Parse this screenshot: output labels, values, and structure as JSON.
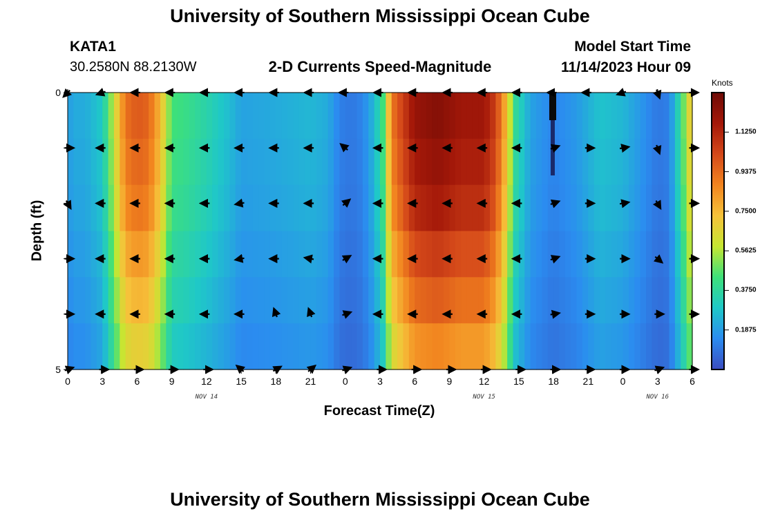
{
  "header": {
    "title": "University of Southern Mississippi Ocean Cube",
    "station_id": "KATA1",
    "station_coords": "30.2580N  88.2130W",
    "chart_title": "2-D Currents Speed-Magnitude",
    "model_start_label": "Model Start Time",
    "model_start_value": "11/14/2023 Hour 09"
  },
  "footer": {
    "title": "University of Southern Mississippi Ocean Cube"
  },
  "chart_data": {
    "type": "heatmap",
    "title": "2-D Currents Speed-Magnitude",
    "xlabel": "Forecast Time(Z)",
    "ylabel": "Depth (ft)",
    "x_hours": [
      0,
      3,
      6,
      9,
      12,
      15,
      18,
      21,
      24,
      27,
      30,
      33,
      36,
      39,
      42,
      45,
      48,
      51,
      54
    ],
    "x_tick_labels": [
      "0",
      "3",
      "6",
      "9",
      "12",
      "15",
      "18",
      "21",
      "0",
      "3",
      "6",
      "9",
      "12",
      "15",
      "18",
      "21",
      "0",
      "3",
      "6"
    ],
    "xlim": [
      0,
      54
    ],
    "day_labels": [
      {
        "text": "NOV 14",
        "hour": 12
      },
      {
        "text": "NOV 15",
        "hour": 36
      },
      {
        "text": "NOV 16",
        "hour": 51
      }
    ],
    "ylim": [
      0,
      5
    ],
    "y_tick_labels": [
      "0",
      "5"
    ],
    "depth_rows": [
      0,
      1,
      2,
      3,
      4,
      5
    ],
    "colorbar": {
      "unit": "Knots",
      "min": 0,
      "max": 1.3125,
      "ticks": [
        "0.1875",
        "0.3750",
        "0.5625",
        "0.7500",
        "0.9375",
        "1.1250"
      ],
      "colors": [
        "#3b4cc0",
        "#2b8cf0",
        "#1fc8c8",
        "#3ee07a",
        "#c6e632",
        "#f6c23a",
        "#f2841f",
        "#d4481a",
        "#a41809",
        "#6e0a05"
      ]
    },
    "speed_profile_knots": [
      [
        0,
        0.18
      ],
      [
        0.5,
        0.22
      ],
      [
        1.5,
        0.22
      ],
      [
        3,
        0.3
      ],
      [
        4,
        0.6
      ],
      [
        5,
        0.92
      ],
      [
        6,
        0.98
      ],
      [
        7,
        0.95
      ],
      [
        8,
        0.75
      ],
      [
        9,
        0.44
      ],
      [
        10,
        0.42
      ],
      [
        12,
        0.35
      ],
      [
        14,
        0.26
      ],
      [
        15,
        0.2
      ],
      [
        18,
        0.22
      ],
      [
        21,
        0.25
      ],
      [
        22.5,
        0.22
      ],
      [
        23.5,
        0.12
      ],
      [
        24.5,
        0.1
      ],
      [
        25.5,
        0.13
      ],
      [
        26.5,
        0.25
      ],
      [
        27.3,
        0.45
      ],
      [
        28,
        0.9
      ],
      [
        30,
        1.2
      ],
      [
        32,
        1.25
      ],
      [
        34,
        1.18
      ],
      [
        36,
        1.18
      ],
      [
        37,
        1.05
      ],
      [
        38,
        0.72
      ],
      [
        38.6,
        0.4
      ],
      [
        40,
        0.2
      ],
      [
        42,
        0.13
      ],
      [
        44,
        0.18
      ],
      [
        46,
        0.28
      ],
      [
        48,
        0.25
      ],
      [
        50,
        0.15
      ],
      [
        51,
        0.1
      ],
      [
        52,
        0.12
      ],
      [
        53,
        0.4
      ],
      [
        54,
        0.75
      ]
    ],
    "depth_factor": [
      1.0,
      0.97,
      0.93,
      0.85,
      0.78,
      0.7
    ],
    "arrow_hours": [
      0,
      3,
      6,
      9,
      12,
      15,
      18,
      21,
      24,
      27,
      30,
      33,
      36,
      39,
      42,
      45,
      48,
      51,
      54
    ],
    "arrow_depths": [
      0,
      1,
      2,
      3,
      4,
      5
    ],
    "arrow_directions_deg": [
      [
        225,
        200,
        180,
        180,
        180,
        180,
        180,
        180,
        180,
        180,
        180,
        180,
        180,
        180,
        180,
        180,
        200,
        290,
        0
      ],
      [
        0,
        180,
        180,
        180,
        180,
        180,
        180,
        180,
        140,
        180,
        180,
        180,
        180,
        180,
        20,
        0,
        10,
        290,
        0
      ],
      [
        300,
        180,
        180,
        180,
        180,
        190,
        180,
        180,
        40,
        180,
        180,
        180,
        180,
        180,
        20,
        0,
        10,
        300,
        0
      ],
      [
        0,
        180,
        180,
        180,
        180,
        190,
        180,
        170,
        30,
        180,
        180,
        180,
        180,
        180,
        20,
        0,
        0,
        320,
        0
      ],
      [
        0,
        180,
        180,
        180,
        180,
        180,
        110,
        110,
        20,
        180,
        180,
        180,
        180,
        180,
        10,
        0,
        0,
        0,
        0
      ],
      [
        20,
        0,
        0,
        0,
        0,
        140,
        30,
        40,
        20,
        0,
        0,
        0,
        0,
        0,
        0,
        0,
        0,
        20,
        0
      ]
    ]
  }
}
